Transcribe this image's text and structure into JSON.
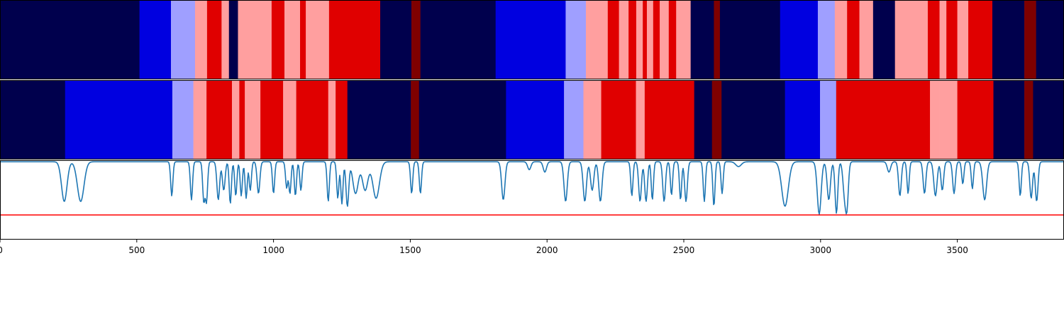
{
  "chart_data": [
    {
      "type": "heatmap",
      "description_role": "state-segments-top",
      "xlim": [
        0,
        3890
      ],
      "segments": [
        {
          "start": 0,
          "end": 510,
          "color": "#00004d"
        },
        {
          "start": 510,
          "end": 625,
          "color": "#0000e0"
        },
        {
          "start": 625,
          "end": 713,
          "color": "#9f9fff"
        },
        {
          "start": 713,
          "end": 757,
          "color": "#ff9f9f"
        },
        {
          "start": 757,
          "end": 810,
          "color": "#e00000"
        },
        {
          "start": 810,
          "end": 837,
          "color": "#ff9f9f"
        },
        {
          "start": 837,
          "end": 870,
          "color": "#00004d"
        },
        {
          "start": 870,
          "end": 993,
          "color": "#ff9f9f"
        },
        {
          "start": 993,
          "end": 1040,
          "color": "#e00000"
        },
        {
          "start": 1040,
          "end": 1097,
          "color": "#ff9f9f"
        },
        {
          "start": 1097,
          "end": 1118,
          "color": "#e00000"
        },
        {
          "start": 1118,
          "end": 1203,
          "color": "#ff9f9f"
        },
        {
          "start": 1203,
          "end": 1390,
          "color": "#e00000"
        },
        {
          "start": 1390,
          "end": 1504,
          "color": "#00004d"
        },
        {
          "start": 1504,
          "end": 1537,
          "color": "#7f0000"
        },
        {
          "start": 1537,
          "end": 1812,
          "color": "#00004d"
        },
        {
          "start": 1812,
          "end": 2068,
          "color": "#0000e0"
        },
        {
          "start": 2068,
          "end": 2142,
          "color": "#9f9fff"
        },
        {
          "start": 2142,
          "end": 2222,
          "color": "#ff9f9f"
        },
        {
          "start": 2222,
          "end": 2263,
          "color": "#e00000"
        },
        {
          "start": 2263,
          "end": 2298,
          "color": "#ff9f9f"
        },
        {
          "start": 2298,
          "end": 2326,
          "color": "#e00000"
        },
        {
          "start": 2326,
          "end": 2350,
          "color": "#ff9f9f"
        },
        {
          "start": 2350,
          "end": 2365,
          "color": "#e00000"
        },
        {
          "start": 2365,
          "end": 2388,
          "color": "#ff9f9f"
        },
        {
          "start": 2388,
          "end": 2412,
          "color": "#e00000"
        },
        {
          "start": 2412,
          "end": 2445,
          "color": "#ff9f9f"
        },
        {
          "start": 2445,
          "end": 2472,
          "color": "#e00000"
        },
        {
          "start": 2472,
          "end": 2525,
          "color": "#ff9f9f"
        },
        {
          "start": 2525,
          "end": 2610,
          "color": "#00004d"
        },
        {
          "start": 2610,
          "end": 2632,
          "color": "#7f0000"
        },
        {
          "start": 2632,
          "end": 2852,
          "color": "#00004d"
        },
        {
          "start": 2852,
          "end": 2990,
          "color": "#0000e0"
        },
        {
          "start": 2990,
          "end": 3052,
          "color": "#9f9fff"
        },
        {
          "start": 3052,
          "end": 3097,
          "color": "#ff9f9f"
        },
        {
          "start": 3097,
          "end": 3142,
          "color": "#e00000"
        },
        {
          "start": 3142,
          "end": 3192,
          "color": "#ff9f9f"
        },
        {
          "start": 3192,
          "end": 3272,
          "color": "#00004d"
        },
        {
          "start": 3272,
          "end": 3392,
          "color": "#ff9f9f"
        },
        {
          "start": 3392,
          "end": 3435,
          "color": "#e00000"
        },
        {
          "start": 3435,
          "end": 3460,
          "color": "#ff9f9f"
        },
        {
          "start": 3460,
          "end": 3500,
          "color": "#e00000"
        },
        {
          "start": 3500,
          "end": 3540,
          "color": "#ff9f9f"
        },
        {
          "start": 3540,
          "end": 3628,
          "color": "#e00000"
        },
        {
          "start": 3628,
          "end": 3745,
          "color": "#00004d"
        },
        {
          "start": 3745,
          "end": 3788,
          "color": "#7f0000"
        },
        {
          "start": 3788,
          "end": 3890,
          "color": "#00004d"
        }
      ]
    },
    {
      "type": "heatmap",
      "description_role": "state-segments-middle",
      "xlim": [
        0,
        3890
      ],
      "segments": [
        {
          "start": 0,
          "end": 238,
          "color": "#00004d"
        },
        {
          "start": 238,
          "end": 298,
          "color": "#0000e0"
        },
        {
          "start": 298,
          "end": 630,
          "color": "#0000e0"
        },
        {
          "start": 630,
          "end": 707,
          "color": "#9f9fff"
        },
        {
          "start": 707,
          "end": 755,
          "color": "#ff9f9f"
        },
        {
          "start": 755,
          "end": 848,
          "color": "#e00000"
        },
        {
          "start": 848,
          "end": 875,
          "color": "#ff9f9f"
        },
        {
          "start": 875,
          "end": 895,
          "color": "#e00000"
        },
        {
          "start": 895,
          "end": 952,
          "color": "#ff9f9f"
        },
        {
          "start": 952,
          "end": 1035,
          "color": "#e00000"
        },
        {
          "start": 1035,
          "end": 1083,
          "color": "#ff9f9f"
        },
        {
          "start": 1083,
          "end": 1200,
          "color": "#e00000"
        },
        {
          "start": 1200,
          "end": 1227,
          "color": "#ff9f9f"
        },
        {
          "start": 1227,
          "end": 1270,
          "color": "#e00000"
        },
        {
          "start": 1270,
          "end": 1502,
          "color": "#00004d"
        },
        {
          "start": 1502,
          "end": 1532,
          "color": "#7f0000"
        },
        {
          "start": 1532,
          "end": 1850,
          "color": "#00004d"
        },
        {
          "start": 1850,
          "end": 2062,
          "color": "#0000e0"
        },
        {
          "start": 2062,
          "end": 2133,
          "color": "#9f9fff"
        },
        {
          "start": 2133,
          "end": 2198,
          "color": "#ff9f9f"
        },
        {
          "start": 2198,
          "end": 2325,
          "color": "#e00000"
        },
        {
          "start": 2325,
          "end": 2357,
          "color": "#ff9f9f"
        },
        {
          "start": 2357,
          "end": 2538,
          "color": "#e00000"
        },
        {
          "start": 2538,
          "end": 2603,
          "color": "#00004d"
        },
        {
          "start": 2603,
          "end": 2638,
          "color": "#7f0000"
        },
        {
          "start": 2638,
          "end": 2870,
          "color": "#00004d"
        },
        {
          "start": 2870,
          "end": 2998,
          "color": "#0000e0"
        },
        {
          "start": 2998,
          "end": 3057,
          "color": "#9f9fff"
        },
        {
          "start": 3057,
          "end": 3095,
          "color": "#e00000"
        },
        {
          "start": 3095,
          "end": 3400,
          "color": "#e00000"
        },
        {
          "start": 3400,
          "end": 3435,
          "color": "#ff9f9f"
        },
        {
          "start": 3435,
          "end": 3500,
          "color": "#ff9f9f"
        },
        {
          "start": 3500,
          "end": 3632,
          "color": "#e00000"
        },
        {
          "start": 3632,
          "end": 3745,
          "color": "#00004d"
        },
        {
          "start": 3745,
          "end": 3777,
          "color": "#7f0000"
        },
        {
          "start": 3777,
          "end": 3890,
          "color": "#00004d"
        }
      ]
    },
    {
      "type": "line",
      "xlim": [
        0,
        3890
      ],
      "ylim": [
        0,
        1
      ],
      "xticks": [
        0,
        500,
        1000,
        1500,
        2000,
        2500,
        3000,
        3500
      ],
      "xtick_labels": [
        "0",
        "500",
        "1000",
        "1500",
        "2000",
        "2500",
        "3000",
        "3500"
      ],
      "threshold": 0.31,
      "line_color": "#1f77b4",
      "threshold_color": "#ff0000",
      "baseline": 0.98,
      "dips": [
        [
          235,
          0.48,
          10
        ],
        [
          295,
          0.48,
          12
        ],
        [
          628,
          0.55,
          4
        ],
        [
          700,
          0.5,
          4
        ],
        [
          745,
          0.48,
          4
        ],
        [
          755,
          0.48,
          4
        ],
        [
          798,
          0.5,
          5
        ],
        [
          818,
          0.62,
          5
        ],
        [
          842,
          0.45,
          4
        ],
        [
          862,
          0.55,
          4
        ],
        [
          882,
          0.55,
          4
        ],
        [
          900,
          0.52,
          4
        ],
        [
          915,
          0.62,
          4
        ],
        [
          945,
          0.58,
          5
        ],
        [
          1000,
          0.58,
          4
        ],
        [
          1048,
          0.65,
          4
        ],
        [
          1060,
          0.58,
          4
        ],
        [
          1080,
          0.55,
          4
        ],
        [
          1100,
          0.62,
          4
        ],
        [
          1200,
          0.48,
          4
        ],
        [
          1235,
          0.52,
          4
        ],
        [
          1250,
          0.45,
          4
        ],
        [
          1270,
          0.42,
          5
        ],
        [
          1300,
          0.58,
          10
        ],
        [
          1335,
          0.62,
          10
        ],
        [
          1375,
          0.52,
          12
        ],
        [
          1505,
          0.58,
          4
        ],
        [
          1537,
          0.58,
          4
        ],
        [
          1840,
          0.5,
          6
        ],
        [
          1935,
          0.88,
          6
        ],
        [
          1992,
          0.85,
          6
        ],
        [
          2068,
          0.48,
          6
        ],
        [
          2138,
          0.48,
          6
        ],
        [
          2165,
          0.62,
          6
        ],
        [
          2195,
          0.48,
          6
        ],
        [
          2310,
          0.55,
          4
        ],
        [
          2340,
          0.48,
          5
        ],
        [
          2362,
          0.48,
          5
        ],
        [
          2385,
          0.5,
          4
        ],
        [
          2428,
          0.48,
          5
        ],
        [
          2455,
          0.56,
          4
        ],
        [
          2488,
          0.5,
          4
        ],
        [
          2508,
          0.48,
          5
        ],
        [
          2575,
          0.48,
          4
        ],
        [
          2610,
          0.42,
          4
        ],
        [
          2640,
          0.58,
          4
        ],
        [
          2700,
          0.92,
          10
        ],
        [
          2870,
          0.42,
          12
        ],
        [
          2995,
          0.32,
          7
        ],
        [
          3030,
          0.5,
          6
        ],
        [
          3058,
          0.33,
          5
        ],
        [
          3088,
          0.56,
          6
        ],
        [
          3097,
          0.5,
          5
        ],
        [
          3250,
          0.85,
          6
        ],
        [
          3290,
          0.55,
          5
        ],
        [
          3320,
          0.58,
          4
        ],
        [
          3380,
          0.58,
          5
        ],
        [
          3420,
          0.55,
          6
        ],
        [
          3445,
          0.62,
          5
        ],
        [
          3488,
          0.58,
          5
        ],
        [
          3520,
          0.7,
          4
        ],
        [
          3555,
          0.64,
          4
        ],
        [
          3600,
          0.5,
          7
        ],
        [
          3730,
          0.55,
          4
        ],
        [
          3770,
          0.52,
          5
        ],
        [
          3790,
          0.48,
          5
        ]
      ]
    }
  ]
}
